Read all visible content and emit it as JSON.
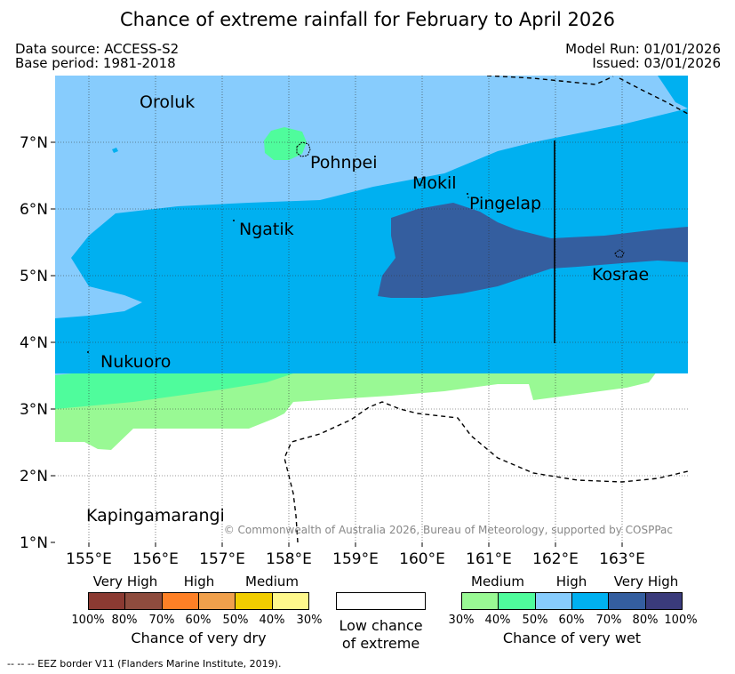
{
  "title": "Chance of extreme rainfall for February to April 2026",
  "meta": {
    "data_source": "Data source: ACCESS-S2",
    "base_period": "Base period: 1981-2018",
    "model_run": "Model Run: 01/01/2026",
    "issued": "Issued: 03/01/2026"
  },
  "map": {
    "lon_range": [
      154.5,
      164.0
    ],
    "lat_range": [
      1.0,
      8.0
    ],
    "x_ticks": [
      "155°E",
      "156°E",
      "157°E",
      "158°E",
      "159°E",
      "160°E",
      "161°E",
      "162°E",
      "163°E"
    ],
    "y_ticks": [
      "1°N",
      "2°N",
      "3°N",
      "4°N",
      "5°N",
      "6°N",
      "7°N"
    ],
    "places": [
      "Oroluk",
      "Pohnpei",
      "Mokil",
      "Pingelap",
      "Ngatik",
      "Kosrae",
      "Nukuoro",
      "Kapingamarangi"
    ],
    "copyright": "© Commonwealth of Australia 2026, Bureau of Meteorology, supported by COSPPac",
    "colors": {
      "wet_medium": "#99f994",
      "wet_medium2": "#4ffc9c",
      "wet_high": "#87ccfd",
      "wet_high2": "#00b0f0",
      "wet_veryhigh": "#345e9f",
      "wet_veryhigh2": "#3a3b7b"
    }
  },
  "legend": {
    "dry": {
      "categories": [
        "Very High",
        "High",
        "Medium"
      ],
      "ticks": [
        "100%",
        "80%",
        "70%",
        "60%",
        "50%",
        "40%",
        "30%"
      ],
      "caption": "Chance of very dry",
      "colors": [
        "#8b3a32",
        "#8e4c3e",
        "#fe8026",
        "#f0a04c",
        "#f1cd00",
        "#fef88c"
      ]
    },
    "low": {
      "caption_line1": "Low chance",
      "caption_line2": "of extreme"
    },
    "wet": {
      "categories": [
        "Medium",
        "High",
        "Very High"
      ],
      "ticks": [
        "30%",
        "40%",
        "50%",
        "60%",
        "70%",
        "80%",
        "100%"
      ],
      "caption": "Chance of very wet",
      "colors": [
        "#99f994",
        "#4ffc9c",
        "#87ccfd",
        "#00b0f0",
        "#345e9f",
        "#3a3b7b"
      ]
    }
  },
  "footer": "--  --  -- EEZ border V11 (Flanders Marine Institute, 2019)."
}
